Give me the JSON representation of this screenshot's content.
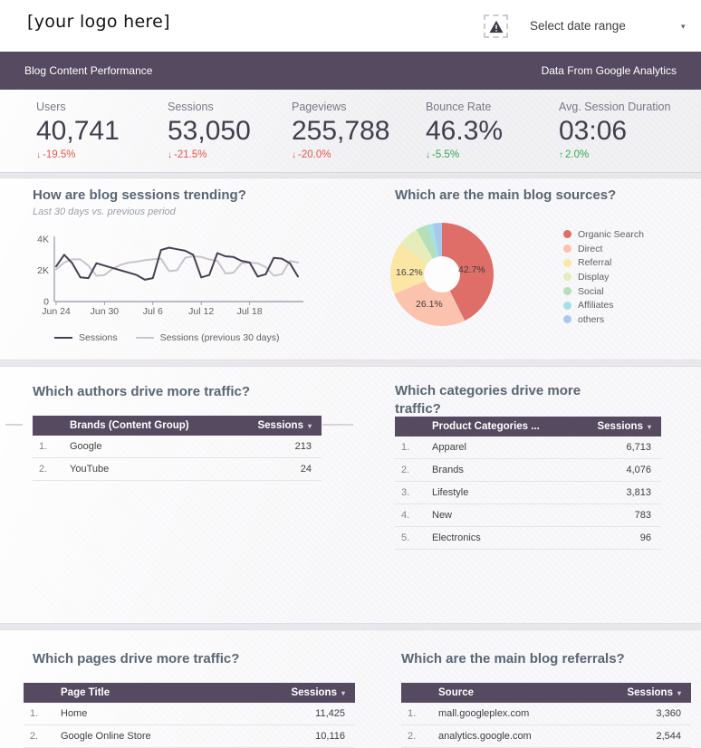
{
  "theme": {
    "accent": "#564a60",
    "negative": "#e8554b",
    "positive": "#34a853",
    "series_dark": "#473e52",
    "series_light": "#c7c4cd"
  },
  "icons": {
    "dropdown_caret": "▾",
    "sort_caret": "▾"
  },
  "header": {
    "logo_text": "[your logo here]",
    "date_range_label": "Select date range"
  },
  "banner": {
    "left": "Blog Content Performance",
    "right": "Data From Google Analytics"
  },
  "kpis": [
    {
      "label": "Users",
      "value": "40,741",
      "arrow": "↓",
      "delta": "-19.5%",
      "state": "negative"
    },
    {
      "label": "Sessions",
      "value": "53,050",
      "arrow": "↓",
      "delta": "-21.5%",
      "state": "negative"
    },
    {
      "label": "Pageviews",
      "value": "255,788",
      "arrow": "↓",
      "delta": "-20.0%",
      "state": "negative"
    },
    {
      "label": "Bounce Rate",
      "value": "46.3%",
      "arrow": "↓",
      "delta": "-5.5%",
      "state": "positive"
    },
    {
      "label": "Avg. Session Duration",
      "value": "03:06",
      "arrow": "↑",
      "delta": "2.0%",
      "state": "positive"
    }
  ],
  "chart_data": [
    {
      "type": "line",
      "title": "How are blog sessions trending?",
      "subtitle": "Last 30 days vs. previous period",
      "xlabel": "",
      "ylabel": "",
      "ylim": [
        0,
        4000
      ],
      "yticks": [
        {
          "value": 0,
          "label": "0"
        },
        {
          "value": 2000,
          "label": "2K"
        },
        {
          "value": 4000,
          "label": "4K"
        }
      ],
      "xticks": [
        {
          "index": 0,
          "label": "Jun 24"
        },
        {
          "index": 6,
          "label": "Jun 30"
        },
        {
          "index": 12,
          "label": "Jul 6"
        },
        {
          "index": 18,
          "label": "Jul 12"
        },
        {
          "index": 24,
          "label": "Jul 18"
        }
      ],
      "grid": false,
      "legend_position": "bottom",
      "series": [
        {
          "name": "Sessions",
          "color": "#473e52",
          "values": [
            2250,
            3000,
            2450,
            1550,
            1500,
            2450,
            2300,
            2150,
            2000,
            1850,
            1700,
            1400,
            1500,
            3300,
            3450,
            3350,
            3250,
            3000,
            1550,
            1700,
            3100,
            2900,
            2850,
            2600,
            2500,
            1600,
            1750,
            2800,
            2750,
            2450,
            1600
          ]
        },
        {
          "name": "Sessions (previous 30 days)",
          "color": "#c7c4cd",
          "values": [
            2050,
            2500,
            2700,
            2700,
            2300,
            1650,
            1700,
            2100,
            2350,
            2500,
            2550,
            2650,
            2700,
            2750,
            1950,
            2000,
            2800,
            2900,
            2850,
            2700,
            2600,
            1800,
            1850,
            2450,
            2500,
            2450,
            2200,
            1650,
            1750,
            2600,
            2500
          ]
        }
      ]
    },
    {
      "type": "pie",
      "title": "Which are the main blog sources?",
      "donut": true,
      "legend_position": "right",
      "labels": [
        "Organic Search",
        "Direct",
        "Referral",
        "Display",
        "Social",
        "Affiliates",
        "others"
      ],
      "values": [
        42.7,
        26.1,
        16.2,
        6.7,
        3.6,
        1.9,
        2.8
      ],
      "colors": [
        "#df6e68",
        "#fbc3ad",
        "#fce6a4",
        "#e6edbb",
        "#b5dfb8",
        "#a8e1e3",
        "#a9c9ec"
      ],
      "callouts": [
        "42.7%",
        "26.1%",
        "16.2%"
      ]
    }
  ],
  "tables": [
    {
      "title": "Which authors drive more traffic?",
      "dim": "Brands (Content Group)",
      "metric": "Sessions",
      "rows": [
        [
          "Google",
          "213"
        ],
        [
          "YouTube",
          "24"
        ]
      ]
    },
    {
      "title": "Which categories drive more traffic?",
      "dim": "Product Categories ...",
      "metric": "Sessions",
      "rows": [
        [
          "Apparel",
          "6,713"
        ],
        [
          "Brands",
          "4,076"
        ],
        [
          "Lifestyle",
          "3,813"
        ],
        [
          "New",
          "783"
        ],
        [
          "Electronics",
          "96"
        ]
      ]
    },
    {
      "title": "Which pages drive more traffic?",
      "dim": "Page Title",
      "metric": "Sessions",
      "rows": [
        [
          "Home",
          "11,425"
        ],
        [
          "Google Online Store",
          "10,116"
        ]
      ]
    },
    {
      "title": "Which are the main blog referrals?",
      "dim": "Source",
      "metric": "Sessions",
      "rows": [
        [
          "mall.googleplex.com",
          "3,360"
        ],
        [
          "analytics.google.com",
          "2,544"
        ]
      ]
    }
  ]
}
